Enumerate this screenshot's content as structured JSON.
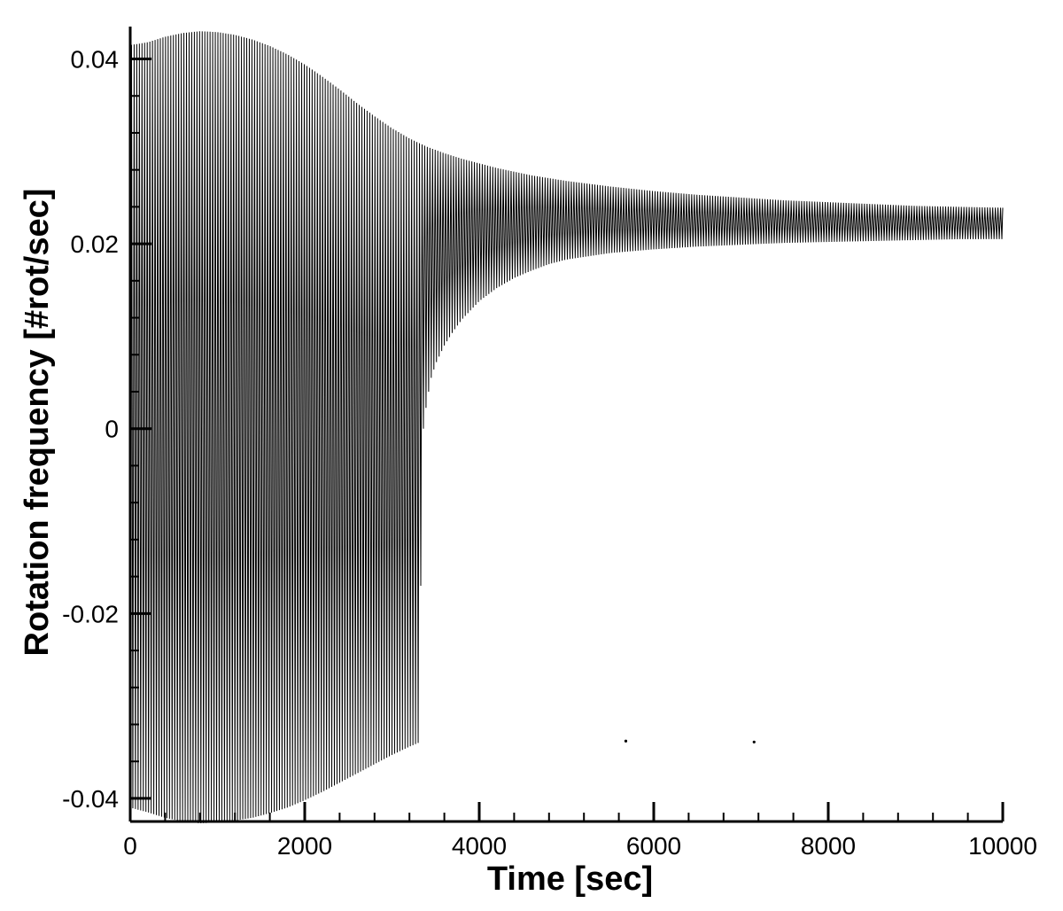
{
  "chart_data": {
    "type": "line",
    "title": "",
    "xlabel": "Time [sec]",
    "ylabel": "Rotation frequency [#rot/sec]",
    "xlim": [
      0,
      10000
    ],
    "ylim": [
      -0.0425,
      0.0435
    ],
    "x_ticks": [
      0,
      2000,
      4000,
      6000,
      8000,
      10000
    ],
    "x_tick_labels": [
      "0",
      "2000",
      "4000",
      "6000",
      "8000",
      "10000"
    ],
    "y_ticks": [
      -0.04,
      -0.02,
      0,
      0.02,
      0.04
    ],
    "y_tick_labels": [
      "-0.04",
      "-0.02",
      "0",
      "0.02",
      "0.04"
    ],
    "grid": false,
    "legend": "none",
    "line_color": "#000000",
    "series": [
      {
        "oscillation_period_sec": 30,
        "upper_envelope": {
          "x": [
            0,
            200,
            400,
            600,
            800,
            1000,
            1200,
            1400,
            1600,
            1800,
            2000,
            2200,
            2400,
            2600,
            2800,
            3000,
            3200,
            3400,
            3600,
            3800,
            4000,
            4200,
            4400,
            4600,
            4800,
            5000,
            5500,
            6000,
            6500,
            7000,
            7500,
            8000,
            8500,
            9000,
            9500,
            10000
          ],
          "y": [
            0.0415,
            0.0418,
            0.0424,
            0.0428,
            0.043,
            0.0429,
            0.0426,
            0.0421,
            0.0414,
            0.0405,
            0.0394,
            0.0381,
            0.0367,
            0.0352,
            0.0338,
            0.0325,
            0.0314,
            0.0305,
            0.0298,
            0.0292,
            0.0287,
            0.0282,
            0.0278,
            0.0274,
            0.0271,
            0.0268,
            0.0262,
            0.0257,
            0.0253,
            0.025,
            0.0247,
            0.0245,
            0.0243,
            0.0241,
            0.024,
            0.0239
          ]
        },
        "lower_envelope": {
          "x": [
            0,
            200,
            400,
            600,
            800,
            1000,
            1200,
            1400,
            1600,
            1800,
            2000,
            2200,
            2400,
            2600,
            2800,
            3000,
            3200,
            3300,
            3360,
            3400,
            3450,
            3500,
            3600,
            3700,
            3800,
            4000,
            4200,
            4400,
            4600,
            4800,
            5000,
            5500,
            6000,
            6500,
            7000,
            7500,
            8000,
            8500,
            9000,
            9500,
            10000
          ],
          "y": [
            -0.041,
            -0.0415,
            -0.0421,
            -0.0425,
            -0.0427,
            -0.0426,
            -0.0424,
            -0.0421,
            -0.0416,
            -0.041,
            -0.0402,
            -0.0393,
            -0.0383,
            -0.0373,
            -0.0363,
            -0.0353,
            -0.0344,
            -0.034,
            0.0,
            0.003,
            0.0055,
            0.007,
            0.009,
            0.0105,
            0.0118,
            0.0138,
            0.0152,
            0.0163,
            0.0171,
            0.0178,
            0.0183,
            0.019,
            0.0194,
            0.0197,
            0.0199,
            0.0201,
            0.0202,
            0.0203,
            0.0204,
            0.0205,
            0.0205
          ]
        }
      }
    ],
    "markers": [
      {
        "x": 5680,
        "y": -0.0338
      },
      {
        "x": 7150,
        "y": -0.0339
      }
    ]
  }
}
